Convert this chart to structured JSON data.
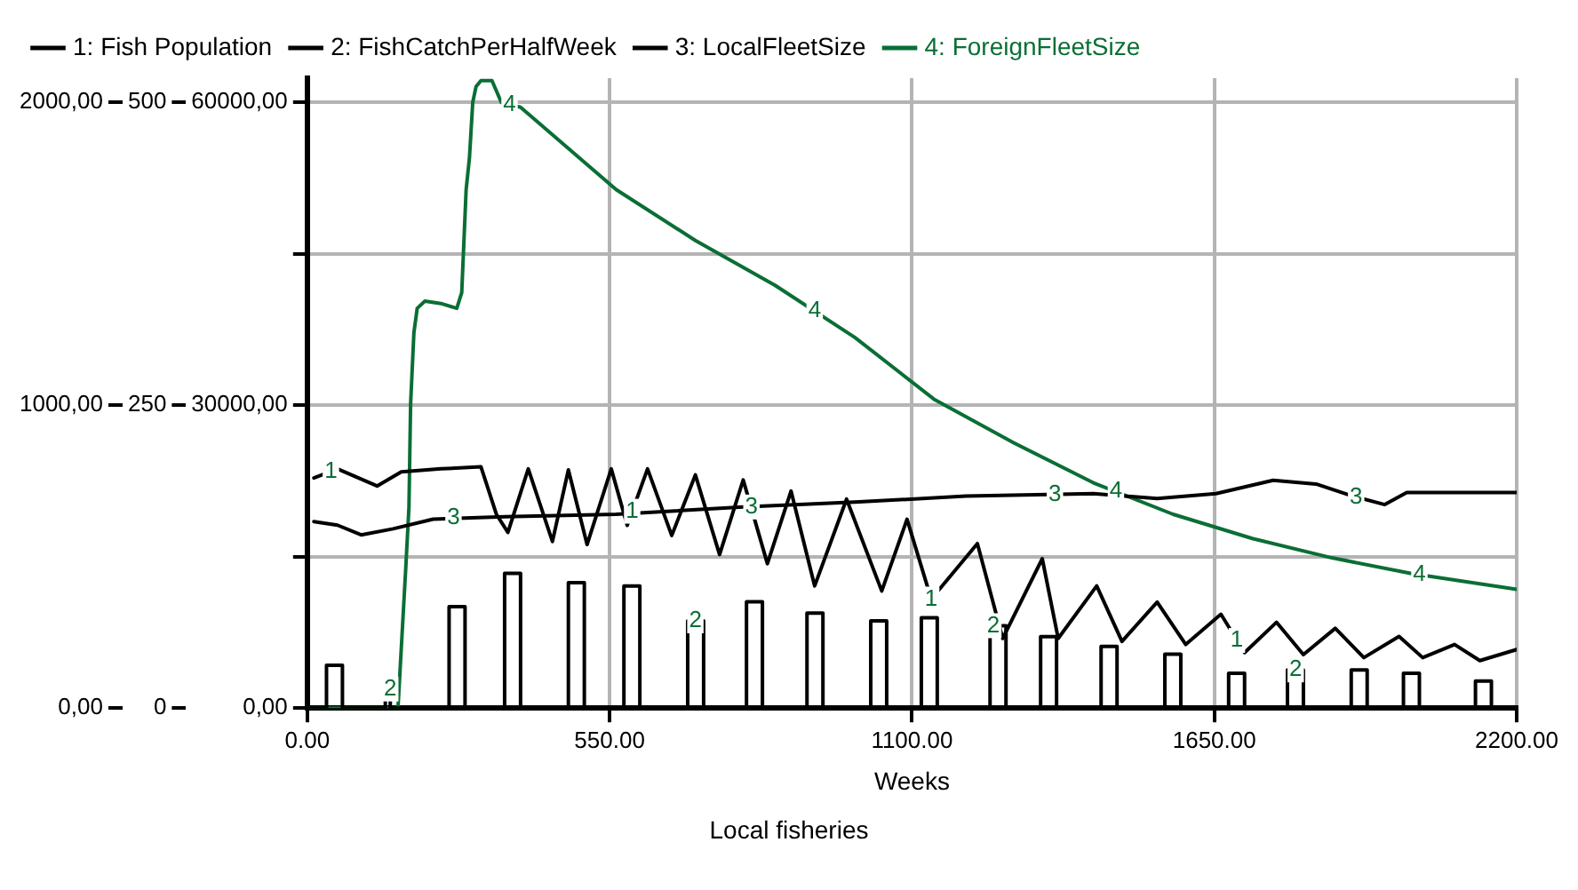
{
  "chart_data": {
    "type": "line",
    "xlabel": "Weeks",
    "legend": "top",
    "grid": true,
    "marker": "none",
    "xlim": [
      0,
      2200
    ],
    "xticks": [
      {
        "value": 0,
        "label": "0.00"
      },
      {
        "value": 550,
        "label": "550.00"
      },
      {
        "value": 1100,
        "label": "1100.00"
      },
      {
        "value": 1650,
        "label": "1650.00"
      },
      {
        "value": 2200,
        "label": "2200.00"
      }
    ],
    "ylim": [
      0,
      62400
    ],
    "yticks": [
      {
        "value": 0,
        "label": "0,00"
      },
      {
        "value": 15000,
        "label": null
      },
      {
        "value": 30000,
        "label": "30000,00"
      },
      {
        "value": 45000,
        "label": null
      },
      {
        "value": 60000,
        "label": "60000,00"
      }
    ],
    "y2lim": [
      0,
      2080
    ],
    "y2ticks": [
      {
        "value": 0,
        "label": "0,00"
      },
      {
        "value": 1000,
        "label": "1000,00"
      },
      {
        "value": 2000,
        "label": "2000,00"
      }
    ],
    "y3lim": [
      0,
      520
    ],
    "y3ticks": [
      0,
      250,
      500
    ],
    "series": [
      {
        "name": "1: Fish Population",
        "color": "#000000",
        "x": [
          12,
          55,
          127,
          171,
          243,
          316,
          344,
          365,
          402,
          446,
          475,
          509,
          553,
          582,
          619,
          663,
          706,
          750,
          793,
          837,
          880,
          923,
          981,
          1045,
          1091,
          1135,
          1219,
          1265,
          1337,
          1366,
          1436,
          1482,
          1546,
          1598,
          1662,
          1705,
          1763,
          1812,
          1870,
          1922,
          1986,
          2029,
          2087,
          2133,
          2200
        ],
        "values": [
          22800,
          23700,
          22000,
          23400,
          23700,
          23900,
          19200,
          17400,
          23700,
          16500,
          23600,
          16200,
          23700,
          18100,
          23700,
          17100,
          23100,
          15200,
          22600,
          14300,
          21500,
          12100,
          20700,
          11600,
          18700,
          10800,
          16300,
          6900,
          14800,
          6900,
          12100,
          6600,
          10500,
          6300,
          9300,
          5500,
          8500,
          5300,
          7900,
          5000,
          7100,
          5000,
          6300,
          4700,
          5800
        ]
      },
      {
        "name": "2: FishCatchPerHalfWeek",
        "color": "#000000",
        "axis": "y2",
        "x": [
          0,
          35,
          35,
          64,
          64,
          142,
          142,
          151,
          151,
          258,
          258,
          287,
          287,
          359,
          359,
          388,
          388,
          475,
          475,
          504,
          504,
          576,
          576,
          605,
          605,
          692,
          692,
          721,
          721,
          799,
          799,
          828,
          828,
          909,
          909,
          938,
          938,
          1025,
          1025,
          1054,
          1054,
          1117,
          1117,
          1146,
          1146,
          1242,
          1242,
          1271,
          1271,
          1334,
          1334,
          1363,
          1363,
          1444,
          1444,
          1473,
          1473,
          1560,
          1560,
          1589,
          1589,
          1676,
          1676,
          1705,
          1705,
          1783,
          1783,
          1812,
          1812,
          1899,
          1899,
          1928,
          1928,
          1994,
          1994,
          2023,
          2023,
          2125,
          2125,
          2154,
          2154,
          2200
        ],
        "values": [
          0,
          0,
          141,
          141,
          0,
          0,
          63,
          63,
          0,
          0,
          335,
          335,
          0,
          0,
          445,
          445,
          0,
          0,
          414,
          414,
          0,
          0,
          403,
          403,
          0,
          0,
          288,
          288,
          0,
          0,
          351,
          351,
          0,
          0,
          314,
          314,
          0,
          0,
          288,
          288,
          0,
          0,
          298,
          298,
          0,
          0,
          272,
          272,
          0,
          0,
          236,
          236,
          0,
          0,
          204,
          204,
          0,
          0,
          178,
          178,
          0,
          0,
          115,
          115,
          0,
          0,
          126,
          126,
          0,
          0,
          126,
          126,
          0,
          0,
          115,
          115,
          0,
          0,
          89,
          89,
          0,
          0
        ]
      },
      {
        "name": "3: LocalFleetSize",
        "color": "#000000",
        "axis": "y3",
        "x": [
          12,
          55,
          98,
          156,
          229,
          359,
          562,
          793,
          996,
          1198,
          1430,
          1546,
          1653,
          1757,
          1835,
          1902,
          1960,
          2000,
          2200
        ],
        "values": [
          154,
          151,
          143,
          148,
          156,
          158,
          160,
          166,
          170,
          175,
          177,
          173,
          177,
          188,
          185,
          175,
          168,
          178,
          178
        ]
      },
      {
        "name": "4: ForeignFleetSize",
        "color": "#0a6e35",
        "axis": "y3",
        "x": [
          0,
          165,
          179,
          185,
          188,
          194,
          200,
          214,
          243,
          272,
          281,
          289,
          295,
          301,
          307,
          316,
          336,
          353,
          388,
          562,
          706,
          851,
          996,
          1140,
          1285,
          1430,
          1575,
          1719,
          1864,
          2009,
          2200
        ],
        "values": [
          0,
          0,
          114,
          166,
          251,
          310,
          330,
          336,
          334,
          330,
          343,
          428,
          454,
          500,
          513,
          518,
          518,
          500,
          496,
          428,
          386,
          349,
          306,
          255,
          219,
          186,
          160,
          140,
          124,
          111,
          98
        ]
      }
    ],
    "annotations": [
      {
        "text": "4",
        "x": 368,
        "y": 59760
      },
      {
        "text": "4",
        "x": 923,
        "y": 39360
      },
      {
        "text": "4",
        "x": 1471,
        "y": 21480
      },
      {
        "text": "4",
        "x": 2023,
        "y": 13200
      },
      {
        "text": "1",
        "x": 43,
        "y": 23400
      },
      {
        "text": "1",
        "x": 591,
        "y": 19500
      },
      {
        "text": "1",
        "x": 1135,
        "y": 10800
      },
      {
        "text": "1",
        "x": 1691,
        "y": 6700
      },
      {
        "text": "2",
        "x": 151,
        "y": 1890
      },
      {
        "text": "2",
        "x": 706,
        "y": 8640
      },
      {
        "text": "2",
        "x": 1248,
        "y": 8160
      },
      {
        "text": "2",
        "x": 1798,
        "y": 3780
      },
      {
        "text": "3",
        "x": 266,
        "y": 18840
      },
      {
        "text": "3",
        "x": 808,
        "y": 19920
      },
      {
        "text": "3",
        "x": 1360,
        "y": 21120
      },
      {
        "text": "3",
        "x": 1908,
        "y": 20880
      },
      "Local fisheries"
    ]
  }
}
